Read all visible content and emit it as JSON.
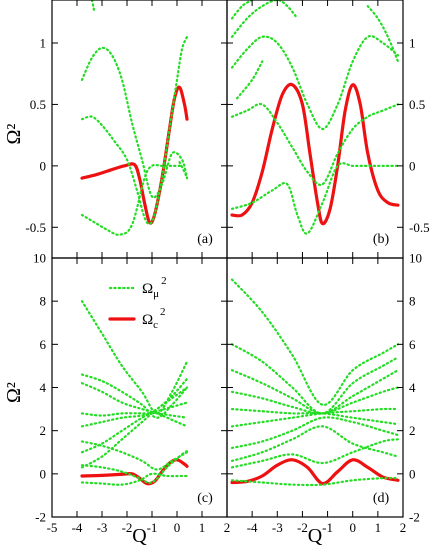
{
  "colors": {
    "omega_mu": "#22dd22",
    "omega_c": "#ee1111",
    "frame": "#000000"
  },
  "chart_data": [
    {
      "type": "line",
      "panel_label": "(a)",
      "xlim": [
        -5,
        2
      ],
      "ylim": [
        -0.75,
        1.35
      ],
      "yticks": [
        -0.5,
        0,
        0.5,
        1
      ],
      "ytick_labels": [
        "-0.5",
        "0",
        "0.5",
        "1"
      ],
      "ylabel": "Ω²",
      "xlabel": "",
      "series": [
        {
          "style": "solid",
          "x": [
            -3.8,
            -3.2,
            -2.6,
            -2.1,
            -1.7,
            -1.5,
            -1.3,
            -1.1,
            -0.9,
            -0.6,
            -0.3,
            -0.1,
            0.1,
            0.3,
            0.4
          ],
          "y": [
            -0.1,
            -0.07,
            -0.03,
            0.0,
            0.01,
            -0.1,
            -0.3,
            -0.46,
            -0.4,
            -0.1,
            0.3,
            0.55,
            0.64,
            0.5,
            0.38
          ]
        },
        {
          "style": "dotted",
          "x": [
            -3.8,
            -3.3,
            -2.8,
            -2.3,
            -1.8,
            -1.3,
            -1.0,
            -0.6,
            -0.2,
            0.2
          ],
          "y": [
            -0.4,
            -0.46,
            -0.52,
            -0.56,
            -0.48,
            -0.1,
            0.0,
            0.0,
            0.0,
            0.0
          ]
        },
        {
          "style": "dotted",
          "x": [
            -3.8,
            -3.4,
            -3.0,
            -2.5,
            -2.0,
            -1.6,
            -1.3,
            -1.1,
            -0.9,
            -0.6,
            -0.3,
            0.0,
            0.2,
            0.4
          ],
          "y": [
            0.38,
            0.4,
            0.33,
            0.2,
            0.05,
            -0.2,
            -0.42,
            -0.47,
            -0.4,
            -0.1,
            0.3,
            0.7,
            0.95,
            1.05
          ]
        },
        {
          "style": "dotted",
          "x": [
            -3.8,
            -3.4,
            -3.0,
            -2.6,
            -2.2,
            -1.8,
            -1.4,
            -1.0,
            -0.6,
            -0.2,
            0.2,
            0.4
          ],
          "y": [
            0.7,
            0.88,
            0.96,
            0.9,
            0.7,
            0.35,
            0.05,
            -0.25,
            -0.15,
            0.1,
            0.05,
            -0.1
          ]
        },
        {
          "style": "dotted",
          "x": [
            -3.4,
            -3.35,
            -3.3
          ],
          "y": [
            1.35,
            1.3,
            1.25
          ]
        },
        {
          "style": "dotted",
          "x": [
            0.1,
            0.3,
            0.4
          ],
          "y": [
            0.03,
            -0.05,
            -0.1
          ]
        }
      ]
    },
    {
      "type": "line",
      "panel_label": "(b)",
      "xlim": [
        -5,
        2
      ],
      "ylim": [
        -0.75,
        1.35
      ],
      "yticks": [
        -0.5,
        0,
        0.5,
        1
      ],
      "ytick_labels": [
        "-0.5",
        "0",
        "0.5",
        "1"
      ],
      "ylabel": "",
      "xlabel": "",
      "series": [
        {
          "style": "solid",
          "x": [
            -4.8,
            -4.4,
            -4.0,
            -3.6,
            -3.2,
            -2.8,
            -2.4,
            -2.0,
            -1.7,
            -1.4,
            -1.2,
            -0.9,
            -0.6,
            -0.3,
            0.0,
            0.3,
            0.6,
            1.0,
            1.4,
            1.8
          ],
          "y": [
            -0.4,
            -0.4,
            -0.3,
            -0.05,
            0.3,
            0.58,
            0.66,
            0.5,
            0.1,
            -0.3,
            -0.47,
            -0.35,
            0.0,
            0.45,
            0.66,
            0.5,
            0.1,
            -0.2,
            -0.3,
            -0.32
          ]
        },
        {
          "style": "dotted",
          "x": [
            -4.8,
            -4.0,
            -3.2,
            -2.6,
            -2.2,
            -1.8,
            -1.2,
            -0.6,
            0.0,
            0.6,
            1.2,
            1.8
          ],
          "y": [
            -0.35,
            -0.3,
            -0.2,
            -0.15,
            -0.4,
            -0.55,
            -0.3,
            0.0,
            0.0,
            0.0,
            0.0,
            0.0
          ]
        },
        {
          "style": "dotted",
          "x": [
            -4.8,
            -4.2,
            -3.6,
            -3.0,
            -2.4,
            -1.8,
            -1.2,
            -0.6,
            0.0,
            0.6,
            1.2,
            1.8
          ],
          "y": [
            0.4,
            0.45,
            0.5,
            0.35,
            0.15,
            -0.05,
            -0.15,
            0.1,
            0.3,
            0.4,
            0.45,
            0.5
          ]
        },
        {
          "style": "dotted",
          "x": [
            -4.8,
            -4.2,
            -3.6,
            -3.0,
            -2.4,
            -1.8,
            -1.2,
            -0.6,
            0.0,
            0.6,
            1.2,
            1.8
          ],
          "y": [
            0.8,
            0.95,
            1.05,
            1.0,
            0.8,
            0.5,
            0.3,
            0.5,
            0.85,
            1.05,
            1.0,
            0.9
          ]
        },
        {
          "style": "dotted",
          "x": [
            -4.8,
            -4.2,
            -3.6,
            -3.0,
            -2.6,
            -2.2
          ],
          "y": [
            1.05,
            1.2,
            1.3,
            1.35,
            1.3,
            1.2
          ]
        },
        {
          "style": "dotted",
          "x": [
            -4.6,
            -4.0,
            -3.6
          ],
          "y": [
            0.55,
            0.7,
            0.85
          ]
        },
        {
          "style": "dotted",
          "x": [
            -4.8,
            -4.4,
            -4.0
          ],
          "y": [
            1.2,
            1.3,
            1.35
          ]
        },
        {
          "style": "dotted",
          "x": [
            0.6,
            1.0,
            1.4,
            1.8
          ],
          "y": [
            1.3,
            1.2,
            1.05,
            0.85
          ]
        }
      ]
    },
    {
      "type": "line",
      "panel_label": "(c)",
      "xlim": [
        -5,
        2
      ],
      "ylim": [
        -2,
        10
      ],
      "yticks": [
        -2,
        0,
        2,
        4,
        6,
        8,
        10
      ],
      "ytick_labels": [
        "-2",
        "0",
        "2",
        "4",
        "6",
        "8",
        "10"
      ],
      "xticks": [
        -5,
        -4,
        -3,
        -2,
        -1,
        0,
        1,
        2
      ],
      "xtick_labels": [
        "-5",
        "-4",
        "-3",
        "-2",
        "-1",
        "0",
        "1",
        "2"
      ],
      "ylabel": "Ω²",
      "xlabel": "Q",
      "legend": {
        "placement": "top-left",
        "entries": [
          {
            "label_base": "Ω",
            "label_sub": "μ",
            "label_sup": "2",
            "style": "dotted"
          },
          {
            "label_base": "Ω",
            "label_sub": "c",
            "label_sup": "2",
            "style": "solid"
          }
        ]
      },
      "series": [
        {
          "style": "solid",
          "x": [
            -3.8,
            -3.0,
            -2.2,
            -1.8,
            -1.5,
            -1.2,
            -0.9,
            -0.6,
            -0.3,
            0.0,
            0.3,
            0.4
          ],
          "y": [
            -0.1,
            -0.07,
            -0.02,
            0.0,
            -0.2,
            -0.45,
            -0.35,
            0.1,
            0.5,
            0.65,
            0.45,
            0.35
          ]
        },
        {
          "style": "dotted",
          "x": [
            -3.8,
            -3.0,
            -2.2,
            -1.5,
            -1.0,
            -0.4,
            0.2,
            0.4
          ],
          "y": [
            -0.4,
            -0.45,
            -0.5,
            -0.3,
            0.0,
            -0.1,
            -0.1,
            -0.1
          ]
        },
        {
          "style": "dotted",
          "x": [
            -3.8,
            -3.0,
            -2.2,
            -1.5,
            -1.0,
            -0.4,
            0.2,
            0.4
          ],
          "y": [
            0.4,
            0.3,
            0.1,
            -0.2,
            -0.4,
            0.3,
            0.9,
            1.05
          ]
        },
        {
          "style": "dotted",
          "x": [
            -3.8,
            -3.0,
            -2.2,
            -1.4,
            -0.8,
            -0.2,
            0.4
          ],
          "y": [
            1.5,
            1.3,
            1.0,
            0.6,
            0.2,
            0.6,
            1.0
          ]
        },
        {
          "style": "dotted",
          "x": [
            -3.8,
            -3.0,
            -2.2,
            -1.4,
            -0.8,
            -0.2,
            0.4
          ],
          "y": [
            2.2,
            2.4,
            2.6,
            2.7,
            2.9,
            3.1,
            3.3
          ]
        },
        {
          "style": "dotted",
          "x": [
            -3.8,
            -3.0,
            -2.2,
            -1.4,
            -0.8,
            -0.2,
            0.4
          ],
          "y": [
            2.8,
            2.7,
            2.8,
            2.8,
            2.8,
            2.7,
            2.6
          ]
        },
        {
          "style": "dotted",
          "x": [
            -3.8,
            -3.0,
            -2.2,
            -1.4,
            -0.8,
            -0.2,
            0.4
          ],
          "y": [
            4.2,
            3.8,
            3.3,
            3.0,
            2.8,
            2.5,
            2.2
          ]
        },
        {
          "style": "dotted",
          "x": [
            -3.8,
            -3.0,
            -2.2,
            -1.4,
            -0.8,
            -0.2,
            0.4
          ],
          "y": [
            4.6,
            4.3,
            3.8,
            3.2,
            2.6,
            3.2,
            4.0
          ]
        },
        {
          "style": "dotted",
          "x": [
            -3.8,
            -3.0,
            -2.2,
            -1.4,
            -0.8,
            -0.2,
            0.4
          ],
          "y": [
            1.0,
            1.4,
            2.0,
            2.6,
            3.0,
            3.6,
            4.4
          ]
        },
        {
          "style": "dotted",
          "x": [
            -3.8,
            -3.0,
            -2.2,
            -1.4,
            -0.8,
            -0.2,
            0.4
          ],
          "y": [
            8.0,
            6.5,
            5.0,
            3.8,
            2.8,
            3.8,
            5.2
          ]
        },
        {
          "style": "dotted",
          "x": [
            -3.8,
            -3.0,
            -2.2,
            -1.4,
            -0.8,
            -0.2,
            0.4
          ],
          "y": [
            0.3,
            0.8,
            1.6,
            2.4,
            3.0,
            3.5,
            4.0
          ]
        }
      ]
    },
    {
      "type": "line",
      "panel_label": "(d)",
      "xlim": [
        -5,
        2
      ],
      "ylim": [
        -2,
        10
      ],
      "yticks": [
        -2,
        0,
        2,
        4,
        6,
        8,
        10
      ],
      "ytick_labels": [
        "-2",
        "0",
        "2",
        "4",
        "6",
        "8",
        "10"
      ],
      "xticks": [
        -5,
        -4,
        -3,
        -2,
        -1,
        0,
        1,
        2
      ],
      "xtick_labels": [
        "-5",
        "-4",
        "-3",
        "-2",
        "-1",
        "0",
        "1",
        "2"
      ],
      "ylabel": "",
      "xlabel": "Q",
      "series": [
        {
          "style": "solid",
          "x": [
            -4.8,
            -4.2,
            -3.6,
            -3.0,
            -2.4,
            -1.8,
            -1.2,
            -0.6,
            0.0,
            0.6,
            1.2,
            1.8
          ],
          "y": [
            -0.4,
            -0.35,
            -0.1,
            0.4,
            0.65,
            0.3,
            -0.45,
            0.1,
            0.65,
            0.3,
            -0.15,
            -0.3
          ]
        },
        {
          "style": "dotted",
          "x": [
            -4.8,
            -3.6,
            -2.4,
            -1.2,
            0.0,
            1.2,
            1.8
          ],
          "y": [
            -0.3,
            -0.4,
            -0.5,
            -0.5,
            -0.3,
            -0.2,
            -0.2
          ]
        },
        {
          "style": "dotted",
          "x": [
            -4.8,
            -3.6,
            -2.4,
            -1.2,
            0.0,
            1.2,
            1.8
          ],
          "y": [
            0.3,
            0.6,
            0.9,
            0.5,
            1.0,
            1.5,
            1.6
          ]
        },
        {
          "style": "dotted",
          "x": [
            -4.8,
            -3.6,
            -2.4,
            -1.2,
            0.0,
            1.2,
            1.8
          ],
          "y": [
            1.2,
            1.5,
            2.0,
            2.6,
            2.4,
            2.0,
            1.8
          ]
        },
        {
          "style": "dotted",
          "x": [
            -4.8,
            -3.6,
            -2.4,
            -1.2,
            0.0,
            1.2,
            1.8
          ],
          "y": [
            2.2,
            2.4,
            2.6,
            2.8,
            2.9,
            3.0,
            3.0
          ]
        },
        {
          "style": "dotted",
          "x": [
            -4.8,
            -3.6,
            -2.4,
            -1.2,
            0.0,
            1.2,
            1.8
          ],
          "y": [
            3.0,
            2.9,
            2.8,
            2.8,
            2.6,
            2.4,
            2.3
          ]
        },
        {
          "style": "dotted",
          "x": [
            -4.8,
            -3.6,
            -2.4,
            -1.2,
            0.0,
            1.2,
            1.8
          ],
          "y": [
            3.8,
            3.5,
            3.1,
            2.8,
            3.3,
            3.8,
            4.0
          ]
        },
        {
          "style": "dotted",
          "x": [
            -4.8,
            -3.6,
            -2.4,
            -1.2,
            0.0,
            1.2,
            1.8
          ],
          "y": [
            4.8,
            4.2,
            3.5,
            2.8,
            3.6,
            4.4,
            4.8
          ]
        },
        {
          "style": "dotted",
          "x": [
            -4.8,
            -3.6,
            -2.4,
            -1.2,
            0.0,
            1.2,
            1.8
          ],
          "y": [
            6.0,
            5.2,
            4.0,
            2.8,
            4.2,
            5.0,
            5.4
          ]
        },
        {
          "style": "dotted",
          "x": [
            -4.8,
            -3.6,
            -2.4,
            -1.2,
            0.0,
            1.2,
            1.8
          ],
          "y": [
            9.0,
            7.5,
            5.5,
            3.2,
            4.8,
            5.6,
            6.0
          ]
        },
        {
          "style": "dotted",
          "x": [
            -4.8,
            -3.6,
            -2.4,
            -1.2,
            0.0,
            1.2,
            1.8
          ],
          "y": [
            0.6,
            1.0,
            1.6,
            2.2,
            1.4,
            1.0,
            0.8
          ]
        }
      ]
    }
  ]
}
